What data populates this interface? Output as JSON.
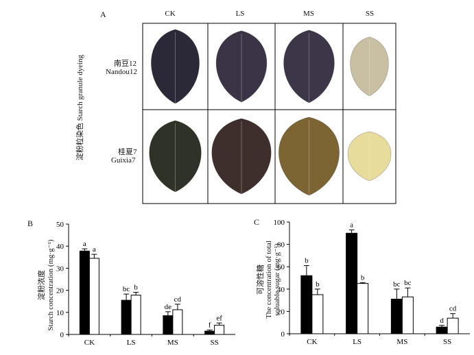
{
  "panel_a": {
    "letter": "A",
    "columns": [
      "CK",
      "LS",
      "MS",
      "SS"
    ],
    "row_axis_label": "淀粉粒染色 Starch granule dyeing",
    "rows": [
      {
        "cn": "南豆12",
        "en": "Nandou12"
      },
      {
        "cn": "桂夏7",
        "en": "Guixia7"
      }
    ],
    "leaf_colors": [
      [
        "#2b2838",
        "#3b3346",
        "#3d3548",
        "#c9bfa2"
      ],
      [
        "#2f3327",
        "#3f2f2c",
        "#7d6433",
        "#e7dc9c"
      ]
    ]
  },
  "chart_data": [
    {
      "type": "bar",
      "panel_letter": "B",
      "categories": [
        "CK",
        "LS",
        "MS",
        "SS"
      ],
      "ylabel_cn": "淀粉浓度",
      "ylabel_en": "Starch concentration (mg·g⁻¹)",
      "ylim": [
        0,
        50
      ],
      "yticks": [
        "0",
        "10",
        "20",
        "30",
        "40",
        "50"
      ],
      "series": [
        {
          "fill": "#000000",
          "values": [
            37.8,
            15.5,
            8.5,
            1.5
          ],
          "errors": [
            1.0,
            2.8,
            1.8,
            0.5
          ],
          "letters": [
            "a",
            "bc",
            "de",
            "f"
          ]
        },
        {
          "fill": "#ffffff",
          "values": [
            34.5,
            17.8,
            11.2,
            4.2
          ],
          "errors": [
            1.8,
            1.3,
            2.5,
            1.0
          ],
          "letters": [
            "a",
            "b",
            "cd",
            "ef"
          ]
        }
      ]
    },
    {
      "type": "bar",
      "panel_letter": "C",
      "categories": [
        "CK",
        "LS",
        "MS",
        "SS"
      ],
      "ylabel_cn": "可溶性糖",
      "ylabel_en_line1": "The concentration of total",
      "ylabel_en_line2": "soluable sugar (mg·g⁻¹)",
      "ylim": [
        0,
        100
      ],
      "yticks": [
        "0",
        "20",
        "40",
        "60",
        "80",
        "100"
      ],
      "series": [
        {
          "fill": "#000000",
          "values": [
            52,
            90,
            31,
            6
          ],
          "errors": [
            9,
            3,
            9,
            1.5
          ],
          "letters": [
            "b",
            "a",
            "bc",
            "d"
          ]
        },
        {
          "fill": "#ffffff",
          "values": [
            35,
            45,
            33,
            14
          ],
          "errors": [
            5,
            0.8,
            8,
            4
          ],
          "letters": [
            "b",
            "b",
            "bc",
            "cd"
          ]
        }
      ]
    }
  ]
}
